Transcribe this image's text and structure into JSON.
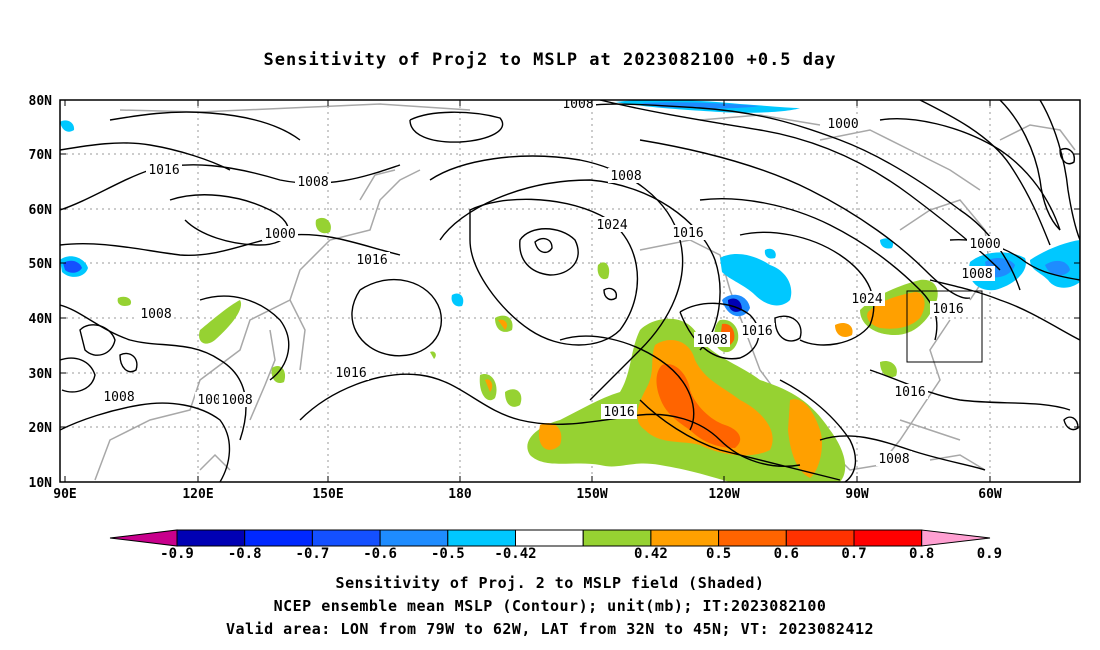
{
  "title": "Sensitivity of Proj2 to MSLP at 2023082100 +0.5 day",
  "map": {
    "lon_ticks": [
      "90E",
      "120E",
      "150E",
      "180",
      "150W",
      "120W",
      "90W",
      "60W"
    ],
    "lat_ticks": [
      "80N",
      "70N",
      "60N",
      "50N",
      "40N",
      "30N",
      "20N",
      "10N"
    ],
    "contour_labels": [
      "1008",
      "1000",
      "1016",
      "1008",
      "1000",
      "1008",
      "1016",
      "1024",
      "1016",
      "1008",
      "1008",
      "1016",
      "1008",
      "1008",
      "1016",
      "1016",
      "1000",
      "1008",
      "1024",
      "1016",
      "1016",
      "1008",
      "1008"
    ],
    "contour_unit": "mb",
    "valid_area": {
      "lon": [
        "79W",
        "62W"
      ],
      "lat": [
        "32N",
        "45N"
      ]
    }
  },
  "colorbar": {
    "labels": [
      "-0.9",
      "-0.8",
      "-0.7",
      "-0.6",
      "-0.5",
      "-0.42",
      "0.42",
      "0.5",
      "0.6",
      "0.7",
      "0.8",
      "0.9"
    ],
    "colors": [
      "#c8008c",
      "#0000b4",
      "#0028ff",
      "#1450ff",
      "#1e8cff",
      "#00c8ff",
      "#ffffff",
      "#96d232",
      "#ffa000",
      "#ff6400",
      "#ff3200",
      "#ff0000",
      "#ffa0d2"
    ]
  },
  "captions": {
    "line1": "Sensitivity of Proj. 2 to MSLP field (Shaded)",
    "line2": "NCEP ensemble mean MSLP (Contour); unit(mb); IT:2023082100",
    "line3": "Valid area: LON from 79W to 62W, LAT from 32N to 45N; VT: 2023082412"
  }
}
